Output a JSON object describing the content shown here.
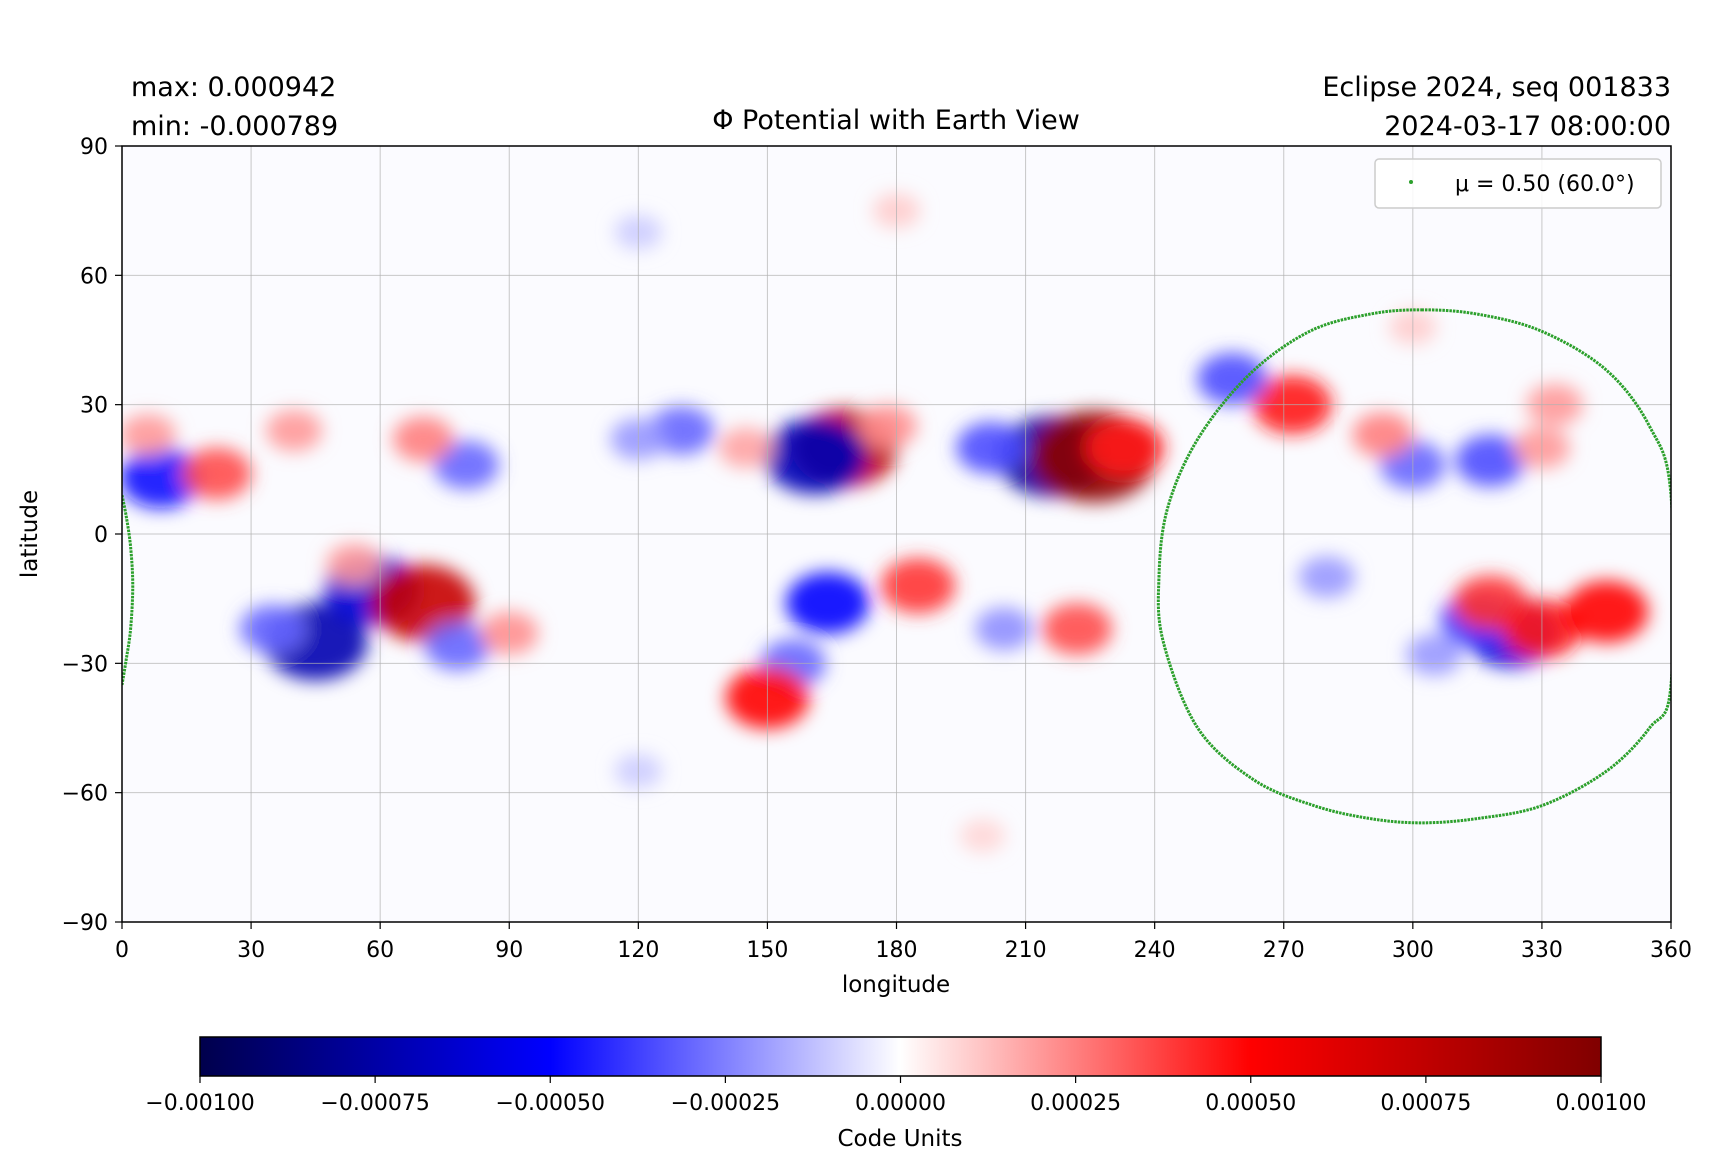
{
  "header": {
    "max_label": "max:  0.000942",
    "min_label": "min:  -0.000789",
    "title": "Φ Potential with Earth View",
    "source_label": "Eclipse 2024, seq 001833",
    "timestamp": "2024-03-17 08:00:00"
  },
  "chart_data": {
    "type": "heatmap",
    "title": "Φ Potential with Earth View",
    "xlabel": "longitude",
    "ylabel": "latitude",
    "xlim": [
      0,
      360
    ],
    "ylim": [
      -90,
      90
    ],
    "x_ticks": [
      "0",
      "30",
      "60",
      "90",
      "120",
      "150",
      "180",
      "210",
      "240",
      "270",
      "300",
      "330",
      "360"
    ],
    "x_tick_values": [
      0,
      30,
      60,
      90,
      120,
      150,
      180,
      210,
      240,
      270,
      300,
      330,
      360
    ],
    "y_ticks": [
      "90",
      "60",
      "30",
      "0",
      "−30",
      "−60",
      "−90"
    ],
    "y_tick_values": [
      90,
      60,
      30,
      0,
      -30,
      -60,
      -90
    ],
    "grid": true,
    "max_value": 0.000942,
    "min_value": -0.000789,
    "colormap": "seismic",
    "colormap_colors": [
      "#00004c",
      "#0000ff",
      "#ffffff",
      "#ff0000",
      "#800000"
    ],
    "colorbar": {
      "label": "Code Units",
      "range": [
        -0.001,
        0.001
      ],
      "ticks": [
        "−0.00100",
        "−0.00075",
        "−0.00050",
        "−0.00025",
        "0.00000",
        "0.00025",
        "0.00050",
        "0.00075",
        "0.00100"
      ],
      "tick_values": [
        -0.001,
        -0.00075,
        -0.0005,
        -0.00025,
        0,
        0.00025,
        0.0005,
        0.00075,
        0.001
      ]
    },
    "features": [
      {
        "lon": 216,
        "lat": 18,
        "value": -0.00078
      },
      {
        "lon": 226,
        "lat": 18,
        "value": 0.00094
      },
      {
        "lon": 233,
        "lat": 20,
        "value": 0.00045
      },
      {
        "lon": 202,
        "lat": 20,
        "value": -0.00035
      },
      {
        "lon": 168,
        "lat": 20,
        "value": 0.00075
      },
      {
        "lon": 161,
        "lat": 18,
        "value": -0.0007
      },
      {
        "lon": 178,
        "lat": 25,
        "value": 0.00022
      },
      {
        "lon": 130,
        "lat": 24,
        "value": -0.0003
      },
      {
        "lon": 120,
        "lat": 22,
        "value": -0.0002
      },
      {
        "lon": 145,
        "lat": 20,
        "value": 0.00018
      },
      {
        "lon": 9,
        "lat": 13,
        "value": -0.00048
      },
      {
        "lon": 22,
        "lat": 14,
        "value": 0.00035
      },
      {
        "lon": 6,
        "lat": 23,
        "value": 0.0002
      },
      {
        "lon": 40,
        "lat": 24,
        "value": 0.0002
      },
      {
        "lon": 80,
        "lat": 16,
        "value": -0.0003
      },
      {
        "lon": 70,
        "lat": 22,
        "value": 0.00025
      },
      {
        "lon": 45,
        "lat": -25,
        "value": -0.00072
      },
      {
        "lon": 58,
        "lat": -13,
        "value": -0.00062
      },
      {
        "lon": 35,
        "lat": -22,
        "value": -0.0003
      },
      {
        "lon": 70,
        "lat": -16,
        "value": 0.00072
      },
      {
        "lon": 78,
        "lat": -26,
        "value": -0.0003
      },
      {
        "lon": 90,
        "lat": -23,
        "value": 0.00022
      },
      {
        "lon": 54,
        "lat": -7,
        "value": 0.0002
      },
      {
        "lon": 164,
        "lat": -16,
        "value": -0.0005
      },
      {
        "lon": 156,
        "lat": -30,
        "value": -0.0003
      },
      {
        "lon": 150,
        "lat": -38,
        "value": 0.0005
      },
      {
        "lon": 185,
        "lat": -12,
        "value": 0.0004
      },
      {
        "lon": 222,
        "lat": -22,
        "value": 0.00035
      },
      {
        "lon": 205,
        "lat": -22,
        "value": -0.00022
      },
      {
        "lon": 272,
        "lat": 30,
        "value": 0.00045
      },
      {
        "lon": 258,
        "lat": 36,
        "value": -0.00035
      },
      {
        "lon": 300,
        "lat": 16,
        "value": -0.0003
      },
      {
        "lon": 293,
        "lat": 23,
        "value": 0.00025
      },
      {
        "lon": 318,
        "lat": 17,
        "value": -0.00035
      },
      {
        "lon": 333,
        "lat": 30,
        "value": 0.0002
      },
      {
        "lon": 330,
        "lat": 20,
        "value": 0.0002
      },
      {
        "lon": 323,
        "lat": -23,
        "value": -0.0006
      },
      {
        "lon": 315,
        "lat": -20,
        "value": -0.0004
      },
      {
        "lon": 318,
        "lat": -16,
        "value": 0.0004
      },
      {
        "lon": 330,
        "lat": -22,
        "value": 0.00045
      },
      {
        "lon": 345,
        "lat": -18,
        "value": 0.0005
      },
      {
        "lon": 305,
        "lat": -28,
        "value": -0.0002
      },
      {
        "lon": 280,
        "lat": -10,
        "value": -0.0002
      },
      {
        "lon": 300,
        "lat": 48,
        "value": 0.0001
      },
      {
        "lon": 180,
        "lat": 75,
        "value": 0.0001
      },
      {
        "lon": 120,
        "lat": 70,
        "value": -0.0001
      },
      {
        "lon": 120,
        "lat": -55,
        "value": -0.0001
      },
      {
        "lon": 200,
        "lat": -70,
        "value": 8e-05
      }
    ],
    "legend": {
      "placement": "top-right",
      "entries": [
        {
          "label": "μ = 0.50 (60.0°)",
          "marker_color": "#2ca02c"
        }
      ]
    },
    "series": [
      {
        "name": "μ = 0.50 (60.0°)",
        "type": "scatter",
        "color": "#2ca02c",
        "shape": "closed curve",
        "x": [
          302,
          315,
          330,
          345,
          355,
          360,
          360,
          355,
          345,
          330,
          315,
          302,
          290,
          277,
          263,
          250,
          242,
          241,
          243,
          250,
          262,
          276,
          290
        ],
        "y": [
          52,
          51,
          47,
          38,
          25,
          9,
          -35,
          -45,
          -55,
          -63,
          -66,
          -67,
          -66,
          -63,
          -57,
          -45,
          -25,
          -10,
          6,
          22,
          37,
          47,
          51
        ]
      },
      {
        "name": "μ = 0.50 (60.0°) wrap",
        "type": "scatter",
        "color": "#2ca02c",
        "x": [
          0,
          1,
          2,
          2.5,
          2,
          1,
          0
        ],
        "y": [
          9,
          4,
          -3,
          -12,
          -22,
          -29,
          -35
        ]
      }
    ]
  }
}
